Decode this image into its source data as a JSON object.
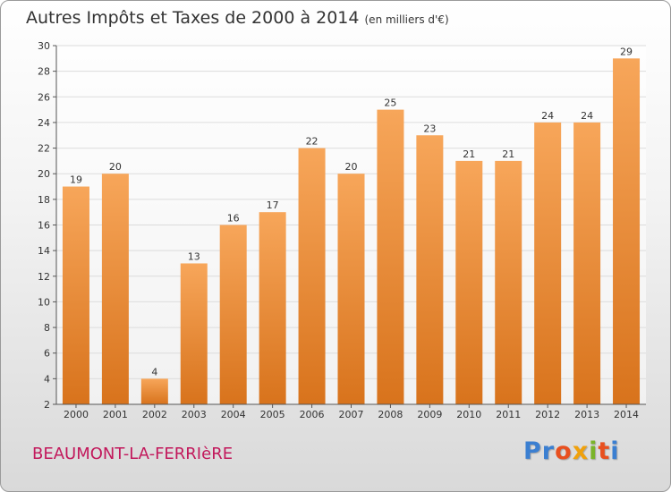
{
  "header": {
    "title": "Autres Impôts et Taxes de 2000 à 2014",
    "unit": "(en milliers d'€)"
  },
  "commune": "BEAUMONT-LA-FERRIèRE",
  "logo": {
    "text": "Proxiti",
    "letter_colors": [
      "#3b7fd1",
      "#3b7fd1",
      "#e8501f",
      "#f0a10c",
      "#7ab42a",
      "#e8501f",
      "#3b7fd1"
    ]
  },
  "colors": {
    "bar_top": "#f7a65a",
    "bar_bottom": "#d8731c",
    "axis": "#555555",
    "grid": "#dcdcdc"
  },
  "chart_data": {
    "type": "bar",
    "title": "Autres Impôts et Taxes de 2000 à 2014",
    "subtitle": "(en milliers d'€)",
    "xlabel": "",
    "ylabel": "",
    "ylim": [
      2,
      30
    ],
    "yticks": [
      2,
      4,
      6,
      8,
      10,
      12,
      14,
      16,
      18,
      20,
      22,
      24,
      26,
      28,
      30
    ],
    "grid": true,
    "categories": [
      "2000",
      "2001",
      "2002",
      "2003",
      "2004",
      "2005",
      "2006",
      "2007",
      "2008",
      "2009",
      "2010",
      "2011",
      "2012",
      "2013",
      "2014"
    ],
    "values": [
      19,
      20,
      4,
      13,
      16,
      17,
      22,
      20,
      25,
      23,
      21,
      21,
      24,
      24,
      29
    ]
  }
}
